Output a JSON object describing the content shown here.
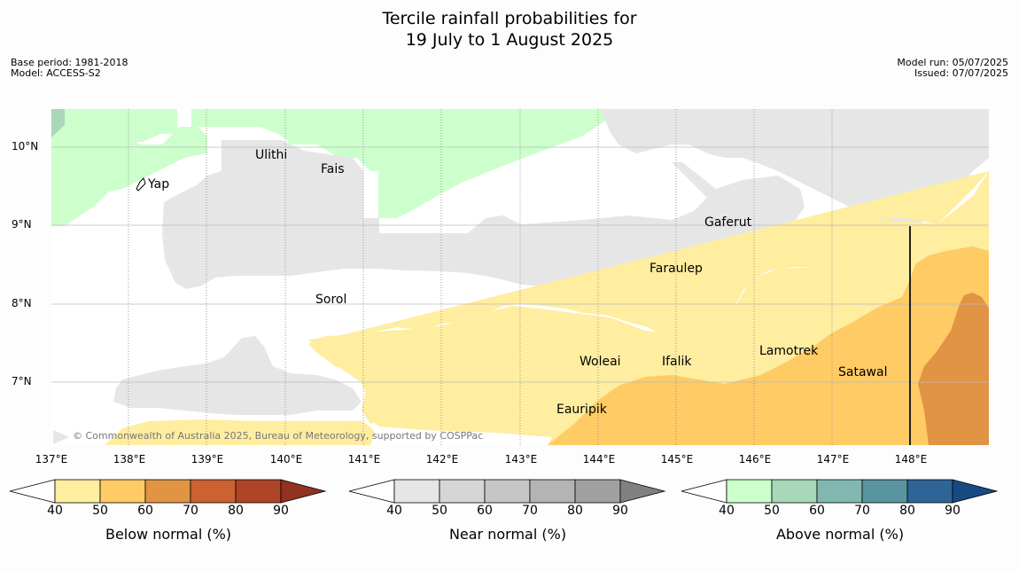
{
  "header": {
    "title_line1": "Tercile rainfall probabilities for",
    "title_line2": "19 July to 1 August 2025",
    "base_period": "Base period: 1981-2018",
    "model": "Model: ACCESS-S2",
    "model_run": "Model run: 05/07/2025",
    "issued": "Issued: 07/07/2025"
  },
  "map": {
    "lat_labels": [
      "10°N",
      "9°N",
      "8°N",
      "7°N"
    ],
    "lon_labels": [
      "137°E",
      "138°E",
      "139°E",
      "140°E",
      "141°E",
      "142°E",
      "143°E",
      "144°E",
      "145°E",
      "146°E",
      "147°E",
      "148°E"
    ],
    "places": [
      "Ulithi",
      "Fais",
      "Yap",
      "Gaferut",
      "Faraulep",
      "Sorol",
      "Woleai",
      "Ifalik",
      "Lamotrek",
      "Satawal",
      "Eauripik"
    ],
    "copyright": "© Commonwealth of Australia 2025, Bureau of Meteorology, supported by COSPPac"
  },
  "legends": [
    {
      "title": "Below normal (%)",
      "ticks": [
        "40",
        "50",
        "60",
        "70",
        "80",
        "90"
      ],
      "colors": [
        "#ffeda0",
        "#fecb65",
        "#e19444",
        "#cc6131",
        "#ae4526",
        "#923221"
      ]
    },
    {
      "title": "Near normal (%)",
      "ticks": [
        "40",
        "50",
        "60",
        "70",
        "80",
        "90"
      ],
      "colors": [
        "#e6e6e6",
        "#d6d6d6",
        "#c6c6c6",
        "#b4b4b4",
        "#a0a0a0",
        "#808080"
      ]
    },
    {
      "title": "Above normal (%)",
      "ticks": [
        "40",
        "50",
        "60",
        "70",
        "80",
        "90"
      ],
      "colors": [
        "#ccffcc",
        "#a8d8b8",
        "#80b8b0",
        "#5a94a0",
        "#2e6496",
        "#164a82"
      ]
    }
  ]
}
